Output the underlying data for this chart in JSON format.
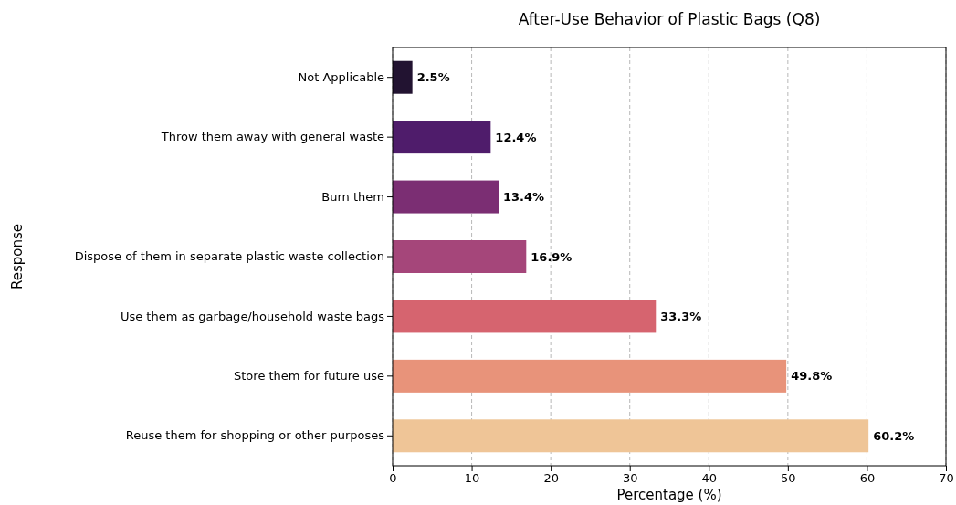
{
  "chart_data": {
    "type": "bar",
    "orientation": "horizontal",
    "title": "After-Use Behavior of Plastic Bags (Q8)",
    "xlabel": "Percentage (%)",
    "ylabel": "Response",
    "categories": [
      "Not Applicable",
      "Throw them away with general waste",
      "Burn them",
      "Dispose of them in separate plastic waste collection",
      "Use them as garbage/household waste bags",
      "Store them for future use",
      "Reuse them for shopping or other purposes"
    ],
    "values": [
      2.5,
      12.4,
      13.4,
      16.9,
      33.3,
      49.8,
      60.2
    ],
    "value_labels": [
      "2.5%",
      "12.4%",
      "13.4%",
      "16.9%",
      "33.3%",
      "49.8%",
      "60.2%"
    ],
    "colors": [
      "#221331",
      "#4f1c6b",
      "#7b2e73",
      "#a5467a",
      "#d6646f",
      "#e8937a",
      "#efc597"
    ],
    "xlim": [
      0,
      70
    ],
    "xticks": [
      0,
      10,
      20,
      30,
      40,
      50,
      60,
      70
    ],
    "grid": "x"
  }
}
